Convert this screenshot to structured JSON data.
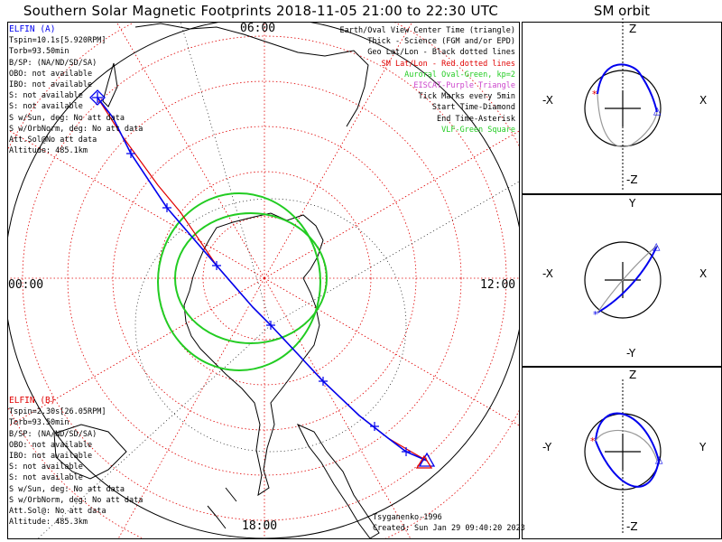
{
  "title": "Southern Solar Magnetic Footprints 2018-11-05 21:00 to 22:30 UTC",
  "sm_orbit_title": "SM orbit",
  "mlt_labels": {
    "top": "06:00",
    "left": "00:00",
    "right": "12:00",
    "bottom": "18:00"
  },
  "elfin_a": {
    "header": "ELFIN (A)",
    "lines": [
      "Tspin=10.1s[5.920RPM]",
      "Torb=93.50min",
      "B/SP: (NA/ND/SD/SA)",
      "OBO: not available",
      "IBO: not available",
      "S: not available",
      "S: not available",
      "S w/Sun, deg: No att data",
      "S w/OrbNorm, deg: No att data",
      "Att.Sol@No att data",
      "Altitude: 485.1km"
    ]
  },
  "elfin_b": {
    "header": "ELFIN (B)",
    "lines": [
      "Tspin=2.30s[26.05RPM]",
      "Torb=93.50min",
      "B/SP: (NA/ND/SD/SA)",
      "OBO: not available",
      "IBO: not available",
      "S: not available",
      "S: not available",
      "S w/Sun, deg: No att data",
      "S w/OrbNorm, deg: No att data",
      "Att.Sol@: No att data",
      "Altitude: 485.3km"
    ]
  },
  "legend": [
    {
      "text": "Earth/Oval View Center Time (triangle)",
      "color": "#000000"
    },
    {
      "text": "Thick - Science (FGM and/or EPD)",
      "color": "#000000"
    },
    {
      "text": "Geo Lat/Lon - Black dotted lines",
      "color": "#000000"
    },
    {
      "text": "SM Lat/Lon - Red dotted lines",
      "color": "#e00000"
    },
    {
      "text": "Auroral Oval-Green, kp=2",
      "color": "#22cc22"
    },
    {
      "text": "EISCAT-Purple Triangle",
      "color": "#cc44cc"
    },
    {
      "text": "Tick Marks every 5min",
      "color": "#000000"
    },
    {
      "text": "Start Time-Diamond",
      "color": "#000000"
    },
    {
      "text": "End Time-Asterisk",
      "color": "#000000"
    },
    {
      "text": "VLF-Green Square",
      "color": "#22cc22"
    }
  ],
  "credit": {
    "author": "Tsyganenko-1996",
    "created": "Created: Sun Jan 29 09:40:20 2023"
  },
  "sm_panels": [
    {
      "top": "Z",
      "bottom": "-Z",
      "left": "-X",
      "right": "X"
    },
    {
      "top": "Y",
      "bottom": "-Y",
      "left": "-X",
      "right": "X"
    },
    {
      "top": "Z",
      "bottom": "-Z",
      "left": "-Y",
      "right": "Y"
    }
  ],
  "colors": {
    "elfin_a": "#0000ee",
    "elfin_b": "#e00000",
    "oval": "#22cc22",
    "sm_grid": "#e00000",
    "geo_grid": "#000000"
  }
}
